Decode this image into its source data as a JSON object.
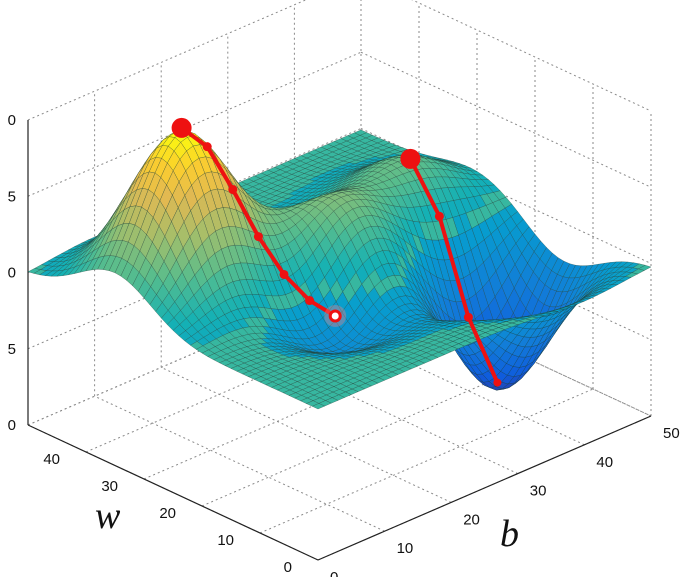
{
  "chart_data": {
    "type": "surface",
    "axes": {
      "x": {
        "label": "w",
        "ticks": [
          "0",
          "10",
          "20",
          "30",
          "40"
        ],
        "range": [
          0,
          40
        ]
      },
      "y": {
        "label": "b",
        "ticks": [
          "0",
          "10",
          "20",
          "30",
          "40",
          "50"
        ],
        "range": [
          0,
          50
        ]
      },
      "z": {
        "ticks": [
          "0",
          "5",
          "0",
          "5",
          "0"
        ]
      }
    },
    "grid": true,
    "colormap": "parula",
    "peaks": [
      {
        "w": 35,
        "b": 10,
        "height": 1.0
      },
      {
        "w": 25,
        "b": 25,
        "height": 0.55
      },
      {
        "w": 30,
        "b": 40,
        "height": 0.35
      },
      {
        "w": 20,
        "b": 20,
        "height": -0.45
      },
      {
        "w": 15,
        "b": 40,
        "height": -0.9
      }
    ],
    "descent_paths": [
      {
        "start": {
          "w": 35,
          "b": 10
        },
        "end": {
          "w": 20,
          "b": 20
        },
        "steps": 6
      },
      {
        "start": {
          "w": 30,
          "b": 40
        },
        "end": {
          "w": 15,
          "b": 40
        },
        "steps": 3
      }
    ]
  }
}
